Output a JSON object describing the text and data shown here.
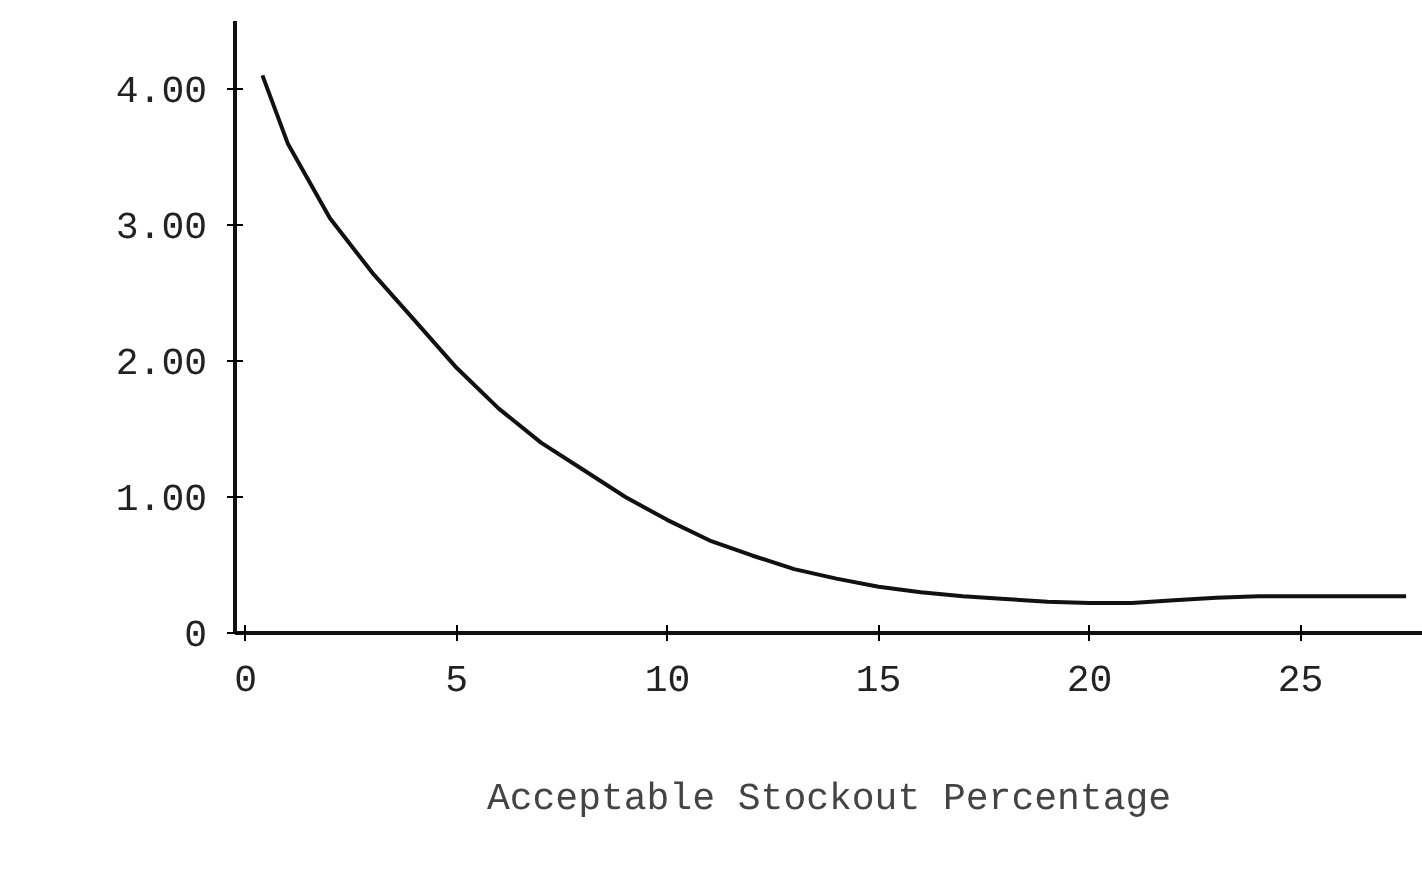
{
  "chart_data": {
    "type": "line",
    "xlabel": "Acceptable Stockout Percentage",
    "x": [
      0.4,
      1,
      2,
      3,
      4,
      5,
      6,
      7,
      8,
      9,
      10,
      11,
      12,
      13,
      14,
      15,
      16,
      17,
      18,
      19,
      20,
      21,
      22,
      23,
      24,
      25,
      26,
      27.5
    ],
    "series": [
      {
        "color": "#111111",
        "values": [
          4.1,
          3.6,
          3.05,
          2.65,
          2.3,
          1.95,
          1.65,
          1.4,
          1.2,
          1.0,
          0.83,
          0.68,
          0.57,
          0.47,
          0.4,
          0.34,
          0.3,
          0.27,
          0.25,
          0.23,
          0.22,
          0.22,
          0.24,
          0.26,
          0.27,
          0.27,
          0.27,
          0.27
        ]
      }
    ],
    "xlim": [
      -0.25,
      27.9
    ],
    "ylim": [
      0,
      4.5
    ],
    "xticks": [
      0,
      5,
      10,
      15,
      20,
      25
    ],
    "yticks": [
      {
        "value": 0,
        "label": "0"
      },
      {
        "value": 1,
        "label": "1.00"
      },
      {
        "value": 2,
        "label": "2.00"
      },
      {
        "value": 3,
        "label": "3.00"
      },
      {
        "value": 4,
        "label": "4.00"
      }
    ],
    "grid": false,
    "marker": "none",
    "line_style": "solid"
  }
}
